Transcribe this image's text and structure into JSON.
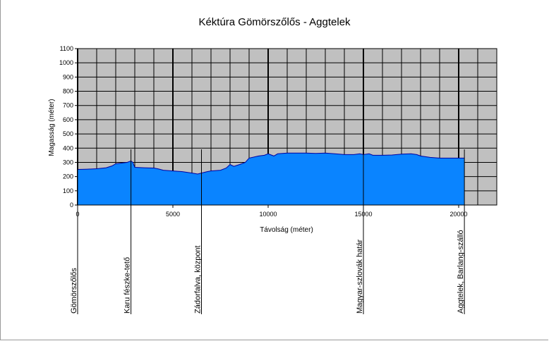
{
  "chart_data": {
    "type": "area",
    "title": "Kéktúra Gömörszőlős - Aggtelek",
    "xlabel": "Távolság (méter)",
    "ylabel": "Magasság (méter)",
    "xlim": [
      0,
      22000
    ],
    "ylim": [
      0,
      1100
    ],
    "x_ticks": [
      0,
      5000,
      10000,
      15000,
      20000
    ],
    "y_ticks": [
      0,
      100,
      200,
      300,
      400,
      500,
      600,
      700,
      800,
      900,
      1000,
      1100
    ],
    "grid": true,
    "plot_background": "#c0c0c0",
    "fill_color": "#0a84ff",
    "line_color": "#0000a0",
    "series": [
      {
        "x": [
          0,
          500,
          1000,
          1500,
          1800,
          2000,
          2300,
          2600,
          2800,
          2900,
          3000,
          3500,
          4000,
          4200,
          4500,
          5000,
          5500,
          6000,
          6300,
          6500,
          6800,
          7000,
          7500,
          7800,
          8000,
          8200,
          8500,
          8800,
          9000,
          9500,
          9800,
          10000,
          10300,
          10500,
          11000,
          11500,
          12000,
          12500,
          13000,
          13500,
          14000,
          14500,
          14800,
          15000,
          15300,
          15500,
          16000,
          16500,
          17000,
          17500,
          17800,
          18000,
          18500,
          19000,
          19500,
          20000,
          20300
        ],
        "y": [
          250,
          252,
          255,
          262,
          275,
          290,
          295,
          300,
          310,
          300,
          265,
          262,
          260,
          255,
          245,
          240,
          235,
          225,
          218,
          225,
          235,
          240,
          245,
          260,
          285,
          272,
          285,
          300,
          330,
          345,
          350,
          360,
          345,
          360,
          365,
          365,
          365,
          363,
          365,
          360,
          355,
          355,
          360,
          355,
          360,
          350,
          350,
          352,
          358,
          360,
          355,
          345,
          335,
          330,
          330,
          330,
          330
        ]
      }
    ],
    "markers": [
      {
        "x": 0,
        "label": "Gömörszőlős"
      },
      {
        "x": 2800,
        "label": "Karu fészke-tető"
      },
      {
        "x": 6500,
        "label": "Zádorfalva, központ"
      },
      {
        "x": 15000,
        "label": "Magyar-szlovák határ"
      },
      {
        "x": 20300,
        "label": "Aggtelek, Barlang-szálló"
      }
    ]
  }
}
